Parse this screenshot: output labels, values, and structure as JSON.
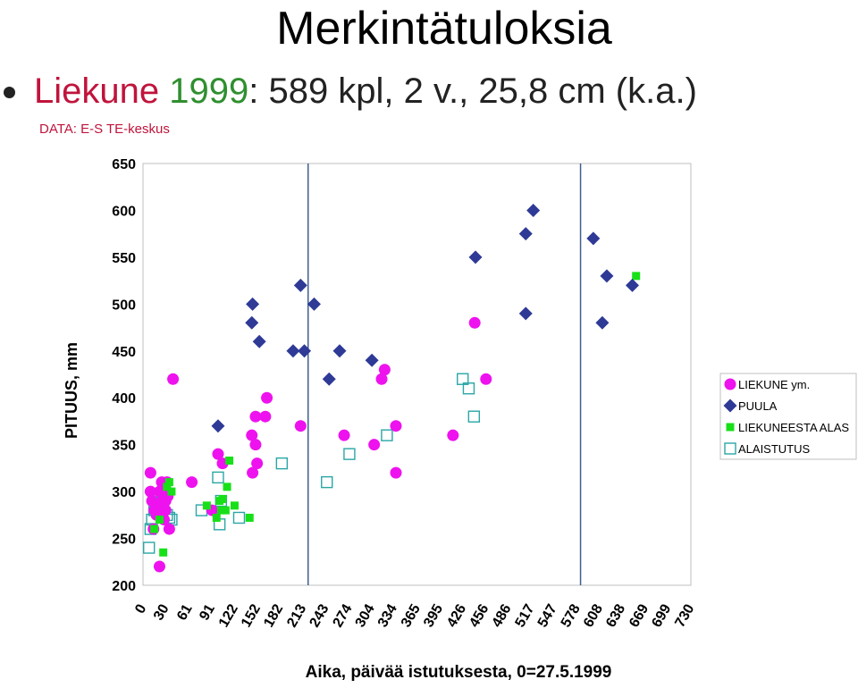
{
  "header": {
    "title": "Merkintätuloksia",
    "line_parts": [
      {
        "text": "Liekune ",
        "color": "#c0143c"
      },
      {
        "text": "1999",
        "color": "#2f8f2f"
      },
      {
        "text": ": 589 kpl, 2 v., 25,8 cm (k.a.)",
        "color": "#222222"
      }
    ],
    "subtitle": "DATA: E-S TE-keskus"
  },
  "chart_data": {
    "type": "scatter",
    "title": "",
    "xlabel": "Aika, päivää istutuksesta, 0=27.5.1999",
    "ylabel": "PITUUS, mm",
    "xlim": [
      0,
      730
    ],
    "ylim": [
      200,
      650
    ],
    "x_ticks": [
      0,
      30,
      61,
      91,
      122,
      152,
      182,
      213,
      243,
      274,
      304,
      334,
      365,
      395,
      426,
      456,
      486,
      517,
      547,
      578,
      608,
      638,
      669,
      699,
      730
    ],
    "y_ticks": [
      200,
      250,
      300,
      350,
      400,
      450,
      500,
      550,
      600,
      650
    ],
    "vertical_lines": [
      220,
      583
    ],
    "legend_position": "right",
    "series": [
      {
        "name": "LIEKUNE ym.",
        "marker": "circle",
        "color": "#ee12ee",
        "points": [
          [
            10,
            320
          ],
          [
            10,
            300
          ],
          [
            12,
            290
          ],
          [
            14,
            260
          ],
          [
            15,
            280
          ],
          [
            18,
            275
          ],
          [
            20,
            280
          ],
          [
            22,
            220
          ],
          [
            22,
            300
          ],
          [
            24,
            285
          ],
          [
            25,
            310
          ],
          [
            26,
            290
          ],
          [
            27,
            300
          ],
          [
            28,
            270
          ],
          [
            30,
            280
          ],
          [
            30,
            290
          ],
          [
            32,
            310
          ],
          [
            33,
            295
          ],
          [
            35,
            260
          ],
          [
            40,
            420
          ],
          [
            65,
            310
          ],
          [
            92,
            280
          ],
          [
            100,
            340
          ],
          [
            106,
            330
          ],
          [
            145,
            360
          ],
          [
            146,
            320
          ],
          [
            150,
            380
          ],
          [
            150,
            350
          ],
          [
            152,
            330
          ],
          [
            163,
            380
          ],
          [
            165,
            400
          ],
          [
            210,
            370
          ],
          [
            268,
            360
          ],
          [
            308,
            350
          ],
          [
            318,
            420
          ],
          [
            322,
            430
          ],
          [
            337,
            370
          ],
          [
            337,
            320
          ],
          [
            413,
            360
          ],
          [
            442,
            480
          ],
          [
            457,
            420
          ]
        ]
      },
      {
        "name": "PUULA",
        "marker": "diamond",
        "color": "#2e3a96",
        "points": [
          [
            100,
            370
          ],
          [
            145,
            480
          ],
          [
            146,
            500
          ],
          [
            155,
            460
          ],
          [
            200,
            450
          ],
          [
            210,
            520
          ],
          [
            215,
            450
          ],
          [
            228,
            500
          ],
          [
            248,
            420
          ],
          [
            262,
            450
          ],
          [
            305,
            440
          ],
          [
            443,
            550
          ],
          [
            510,
            575
          ],
          [
            510,
            490
          ],
          [
            520,
            600
          ],
          [
            600,
            570
          ],
          [
            612,
            480
          ],
          [
            618,
            530
          ],
          [
            652,
            520
          ]
        ]
      },
      {
        "name": "LIEKUNEESTA ALAS",
        "marker": "square-filled",
        "color": "#18e018",
        "points": [
          [
            15,
            260
          ],
          [
            22,
            270
          ],
          [
            27,
            235
          ],
          [
            32,
            305
          ],
          [
            35,
            310
          ],
          [
            38,
            300
          ],
          [
            85,
            285
          ],
          [
            98,
            272
          ],
          [
            102,
            290
          ],
          [
            104,
            280
          ],
          [
            106,
            292
          ],
          [
            110,
            280
          ],
          [
            112,
            305
          ],
          [
            115,
            333
          ],
          [
            122,
            285
          ],
          [
            142,
            272
          ],
          [
            657,
            530
          ]
        ]
      },
      {
        "name": "ALAISTUTUS",
        "marker": "square-open",
        "color": "#2aa6a6",
        "points": [
          [
            8,
            240
          ],
          [
            10,
            260
          ],
          [
            12,
            270
          ],
          [
            15,
            280
          ],
          [
            18,
            285
          ],
          [
            20,
            288
          ],
          [
            24,
            290
          ],
          [
            26,
            292
          ],
          [
            28,
            295
          ],
          [
            30,
            298
          ],
          [
            32,
            275
          ],
          [
            35,
            272
          ],
          [
            38,
            270
          ],
          [
            78,
            280
          ],
          [
            100,
            315
          ],
          [
            102,
            265
          ],
          [
            104,
            290
          ],
          [
            128,
            272
          ],
          [
            185,
            330
          ],
          [
            245,
            310
          ],
          [
            275,
            340
          ],
          [
            325,
            360
          ],
          [
            426,
            420
          ],
          [
            434,
            410
          ],
          [
            441,
            380
          ]
        ]
      }
    ]
  }
}
